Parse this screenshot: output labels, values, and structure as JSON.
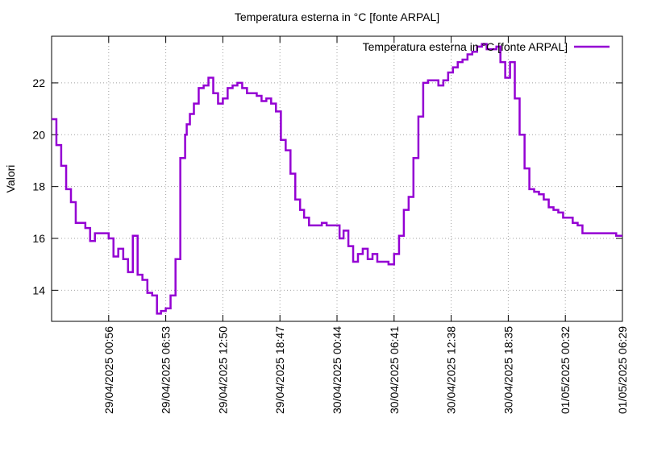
{
  "chart_data": {
    "type": "line",
    "step": true,
    "title": "Temperatura esterna in °C [fonte ARPAL]",
    "y_label": "Valori",
    "legend": "top right",
    "grid": true,
    "x": [
      "28/04/2025 18:59",
      "28/04/2025 19:29",
      "28/04/2025 19:59",
      "28/04/2025 20:30",
      "28/04/2025 21:00",
      "28/04/2025 21:30",
      "28/04/2025 22:30",
      "28/04/2025 23:00",
      "28/04/2025 23:30",
      "29/04/2025 00:56",
      "29/04/2025 01:26",
      "29/04/2025 01:56",
      "29/04/2025 02:27",
      "29/04/2025 02:57",
      "29/04/2025 03:27",
      "29/04/2025 03:57",
      "29/04/2025 04:27",
      "29/04/2025 04:58",
      "29/04/2025 05:28",
      "29/04/2025 05:58",
      "29/04/2025 06:23",
      "29/04/2025 06:53",
      "29/04/2025 07:23",
      "29/04/2025 07:54",
      "29/04/2025 08:24",
      "29/04/2025 08:54",
      "29/04/2025 09:04",
      "29/04/2025 09:24",
      "29/04/2025 09:49",
      "29/04/2025 10:19",
      "29/04/2025 10:50",
      "29/04/2025 11:20",
      "29/04/2025 11:50",
      "29/04/2025 12:20",
      "29/04/2025 12:50",
      "29/04/2025 13:20",
      "29/04/2025 13:51",
      "29/04/2025 14:21",
      "29/04/2025 14:51",
      "29/04/2025 15:21",
      "29/04/2025 16:22",
      "29/04/2025 16:52",
      "29/04/2025 17:22",
      "29/04/2025 17:52",
      "29/04/2025 18:22",
      "29/04/2025 18:53",
      "29/04/2025 19:23",
      "29/04/2025 19:53",
      "29/04/2025 20:23",
      "29/04/2025 20:53",
      "29/04/2025 21:18",
      "29/04/2025 21:49",
      "29/04/2025 23:09",
      "29/04/2025 23:39",
      "30/04/2025 01:00",
      "30/04/2025 01:25",
      "30/04/2025 01:55",
      "30/04/2025 02:25",
      "30/04/2025 02:55",
      "30/04/2025 03:25",
      "30/04/2025 03:56",
      "30/04/2025 04:26",
      "30/04/2025 04:56",
      "30/04/2025 06:06",
      "30/04/2025 06:41",
      "30/04/2025 07:12",
      "30/04/2025 07:42",
      "30/04/2025 08:12",
      "30/04/2025 08:42",
      "30/04/2025 09:13",
      "30/04/2025 09:43",
      "30/04/2025 10:13",
      "30/04/2025 11:18",
      "30/04/2025 11:49",
      "30/04/2025 12:19",
      "30/04/2025 12:49",
      "30/04/2025 13:19",
      "30/04/2025 13:49",
      "30/04/2025 14:20",
      "30/04/2025 14:50",
      "30/04/2025 15:20",
      "30/04/2025 15:50",
      "30/04/2025 16:20",
      "30/04/2025 17:21",
      "30/04/2025 17:46",
      "30/04/2025 18:16",
      "30/04/2025 18:46",
      "30/04/2025 19:16",
      "30/04/2025 19:46",
      "30/04/2025 20:17",
      "30/04/2025 20:47",
      "30/04/2025 21:17",
      "30/04/2025 21:47",
      "30/04/2025 22:17",
      "30/04/2025 22:48",
      "30/04/2025 23:18",
      "30/04/2025 23:48",
      "01/05/2025 00:18",
      "01/05/2025 01:18",
      "01/05/2025 01:49",
      "01/05/2025 02:19",
      "01/05/2025 05:50",
      "01/05/2025 06:29"
    ],
    "series": [
      {
        "name": "Temperatura esterna in °C [fonte ARPAL]",
        "color": "#9400d3",
        "values": [
          20.6,
          19.6,
          18.8,
          17.9,
          17.4,
          16.6,
          16.4,
          15.9,
          16.2,
          16.0,
          15.3,
          15.6,
          15.2,
          14.7,
          16.1,
          14.6,
          14.4,
          13.9,
          13.8,
          13.1,
          13.2,
          13.3,
          13.8,
          15.2,
          19.1,
          20.0,
          20.4,
          20.8,
          21.2,
          21.8,
          21.9,
          22.2,
          21.6,
          21.2,
          21.4,
          21.8,
          21.9,
          22.0,
          21.8,
          21.6,
          21.5,
          21.3,
          21.4,
          21.2,
          20.9,
          19.8,
          19.4,
          18.5,
          17.5,
          17.1,
          16.8,
          16.5,
          16.6,
          16.5,
          16.0,
          16.3,
          15.7,
          15.1,
          15.4,
          15.6,
          15.2,
          15.4,
          15.1,
          15.0,
          15.4,
          16.1,
          17.1,
          17.6,
          19.1,
          20.7,
          22.0,
          22.1,
          21.9,
          22.1,
          22.4,
          22.6,
          22.8,
          22.9,
          23.1,
          23.2,
          23.4,
          23.5,
          23.3,
          23.4,
          22.8,
          22.2,
          22.8,
          21.4,
          20.0,
          18.7,
          17.9,
          17.8,
          17.7,
          17.5,
          17.2,
          17.1,
          17.0,
          16.8,
          16.6,
          16.5,
          16.2,
          16.1,
          16.1
        ]
      }
    ],
    "xlim": [
      "28/04/2025 18:59",
      "01/05/2025 06:29"
    ],
    "xticks": [
      "29/04/2025 00:56",
      "29/04/2025 06:53",
      "29/04/2025 12:50",
      "29/04/2025 18:47",
      "30/04/2025 00:44",
      "30/04/2025 06:41",
      "30/04/2025 12:38",
      "30/04/2025 18:35",
      "01/05/2025 00:32",
      "01/05/2025 06:29"
    ],
    "ylim": [
      12.8,
      23.8
    ],
    "yticks": [
      14,
      16,
      18,
      20,
      22
    ]
  }
}
